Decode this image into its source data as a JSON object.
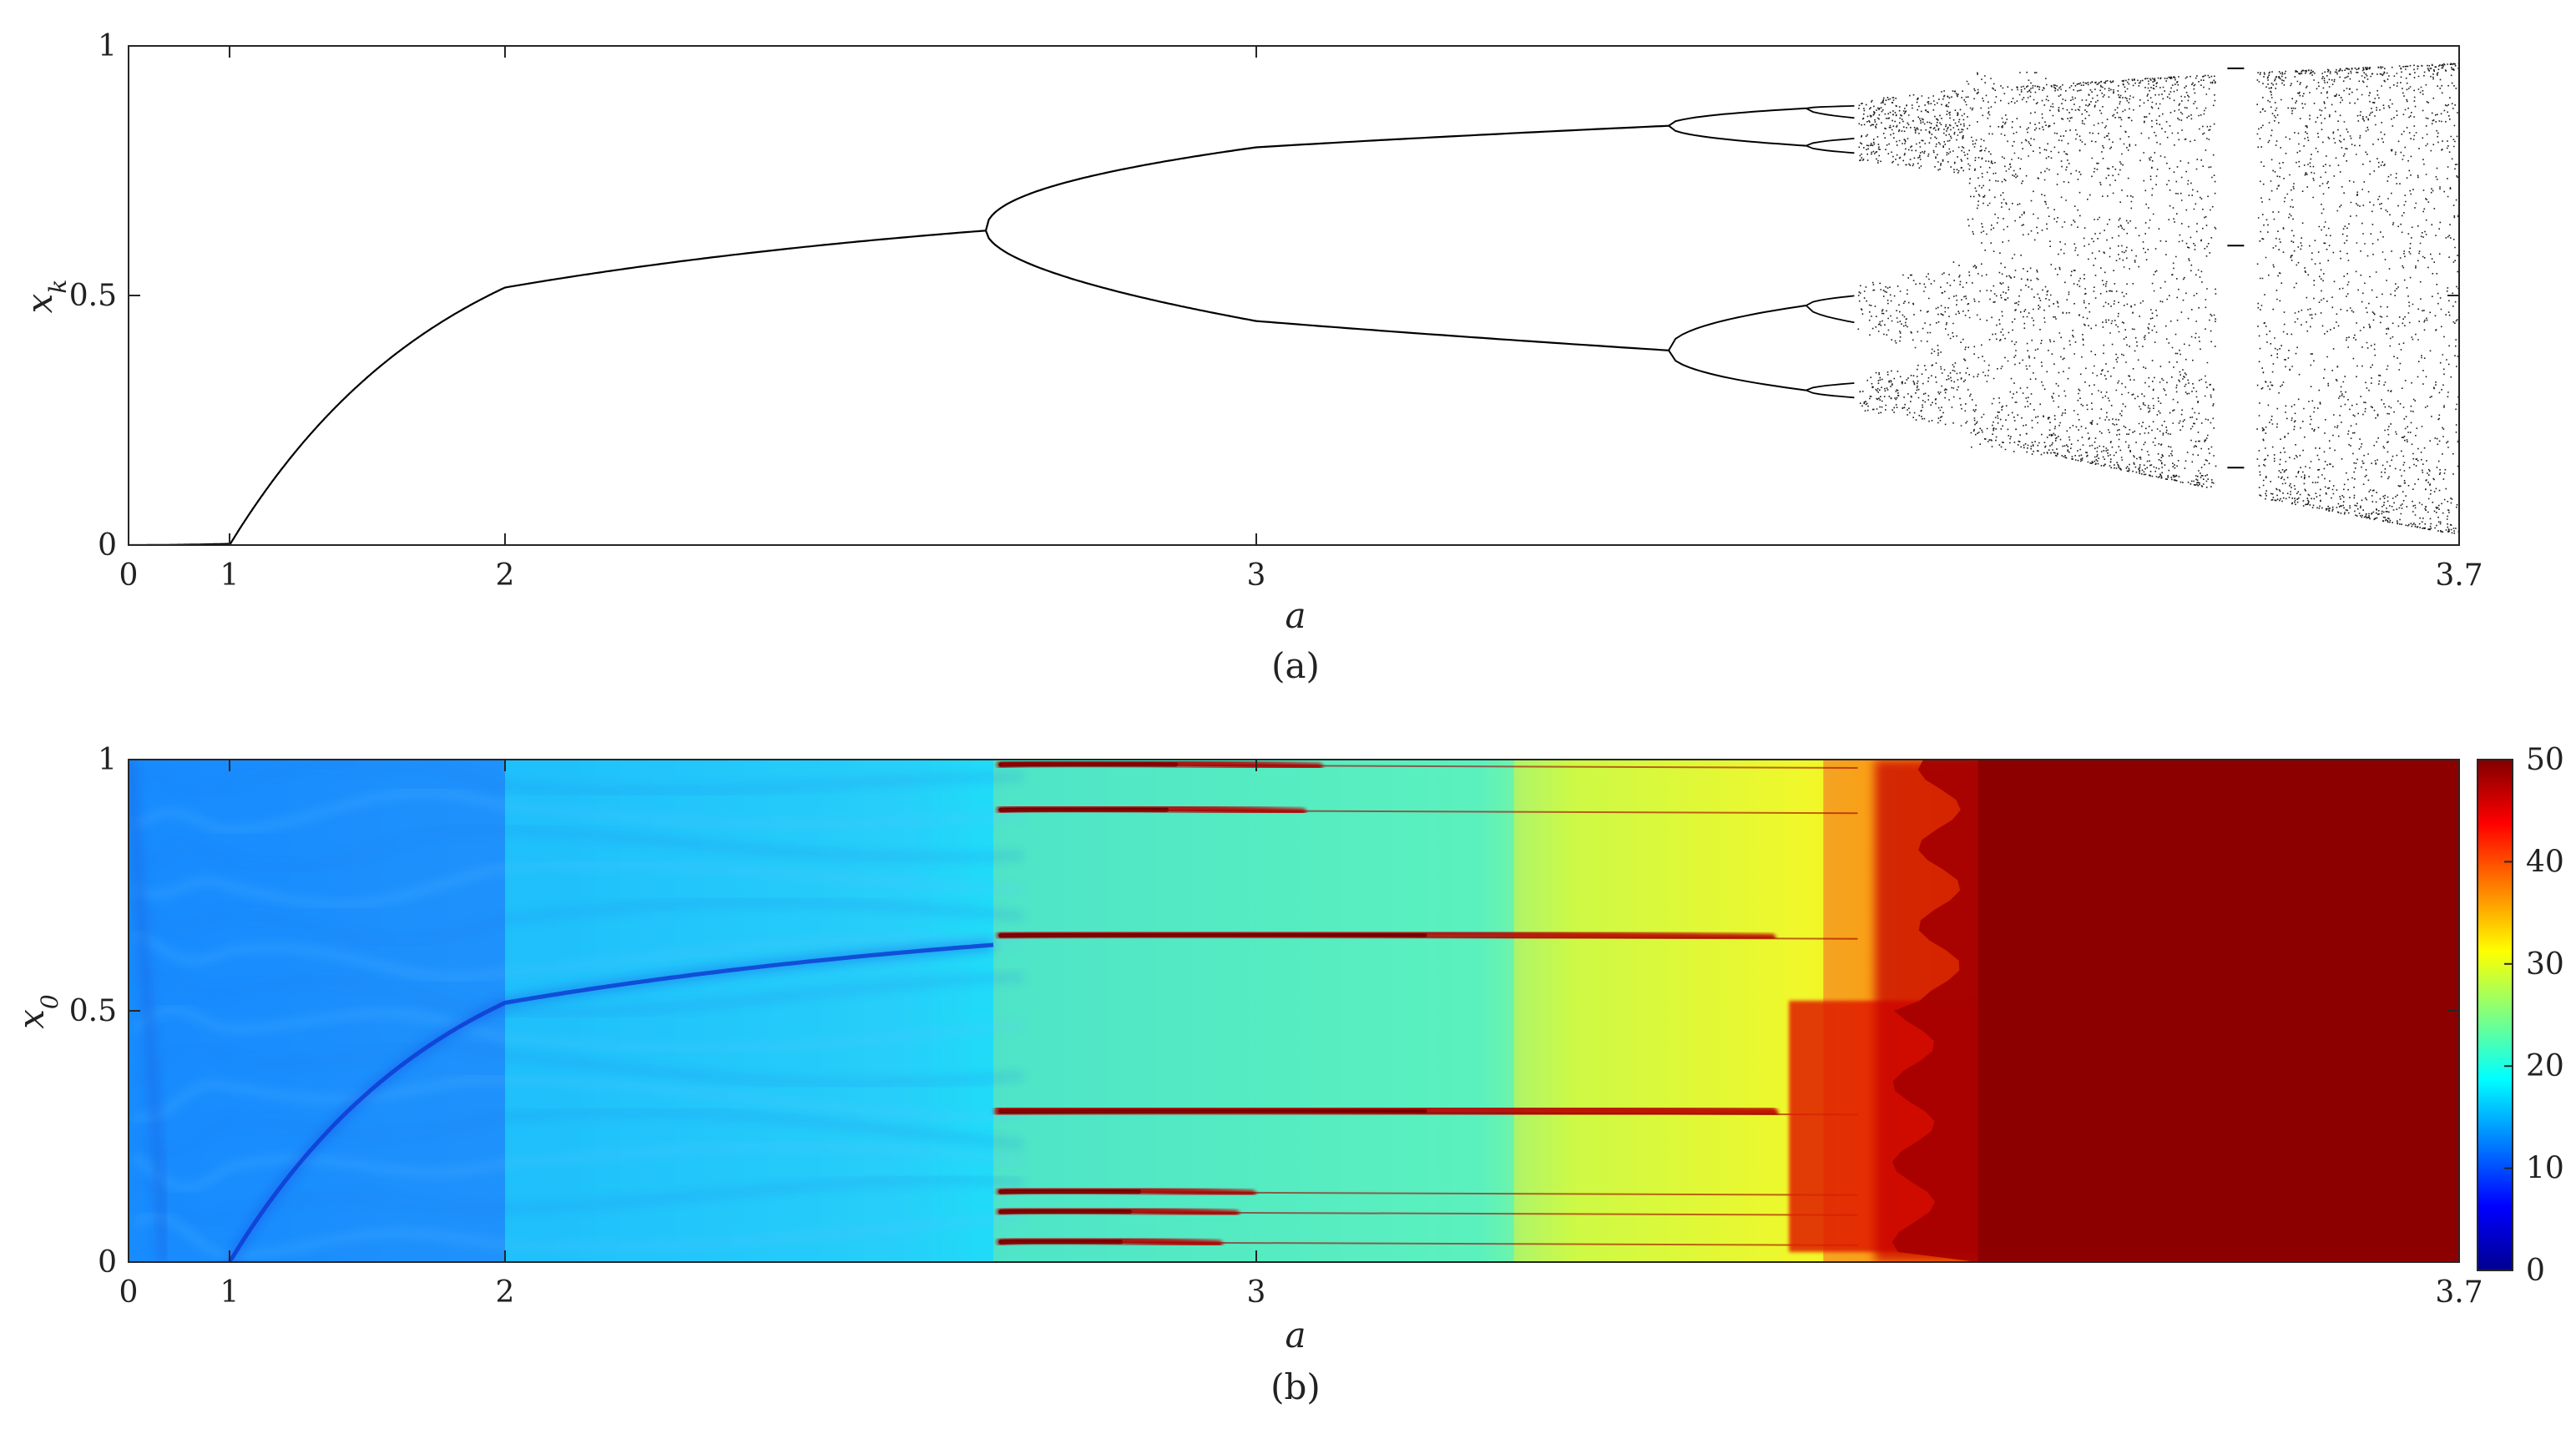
{
  "chart_data": [
    {
      "id": "a",
      "type": "scatter",
      "caption": "(a)",
      "xlabel": "a",
      "ylabel": "x_k",
      "xlim": [
        0,
        3.7
      ],
      "ylim": [
        0,
        1
      ],
      "x_axis": "piecewise-linear: 0→1 short segment, 1→3 and 3→3.7 long segments",
      "xticks": [
        "0",
        "1",
        "2",
        "3",
        "3.7"
      ],
      "yticks": [
        "0",
        "0.5",
        "1"
      ],
      "grid": false,
      "marker_color": "#000000",
      "bifurcations": [
        {
          "a": 1.0,
          "x": 0.0,
          "period_after": 1
        },
        {
          "a": 2.64,
          "x": 0.63,
          "period_after": 2
        },
        {
          "a": 3.24,
          "x_upper": 0.84,
          "x_lower": 0.39,
          "period_after": 4
        },
        {
          "a": 3.32,
          "period_after": 8
        },
        {
          "a": 3.35,
          "note": "onset of chaos"
        }
      ],
      "periodic_window": {
        "a": 3.57,
        "note": "white gap in chaotic band"
      },
      "chaotic_range": [
        3.35,
        3.7
      ]
    },
    {
      "id": "b",
      "type": "heatmap",
      "caption": "(b)",
      "xlabel": "a",
      "ylabel": "x_0",
      "xlim": [
        0,
        3.7
      ],
      "ylim": [
        0,
        1
      ],
      "xticks": [
        "0",
        "1",
        "2",
        "3",
        "3.7"
      ],
      "yticks": [
        "0",
        "0.5",
        "1"
      ],
      "colorbar": {
        "range": [
          0,
          50
        ],
        "ticks": [
          "0",
          "10",
          "20",
          "30",
          "40",
          "50"
        ],
        "colormap": "jet"
      },
      "regions": [
        {
          "a_range": [
            0,
            2.0
          ],
          "level": 13
        },
        {
          "a_range": [
            2.0,
            2.65
          ],
          "level": 18
        },
        {
          "a_range": [
            2.65,
            3.15
          ],
          "level": 24
        },
        {
          "a_range": [
            3.15,
            3.33
          ],
          "level": 31
        },
        {
          "a_range": [
            3.33,
            3.42
          ],
          "level": 40
        },
        {
          "a_range": [
            3.42,
            3.7
          ],
          "level": 50
        }
      ],
      "hot_streaks_x0": [
        0.04,
        0.1,
        0.14,
        0.3,
        0.65,
        0.9,
        0.99
      ],
      "min_curve": "x0 = 1 - 1/a (dark blue ridge)"
    }
  ]
}
